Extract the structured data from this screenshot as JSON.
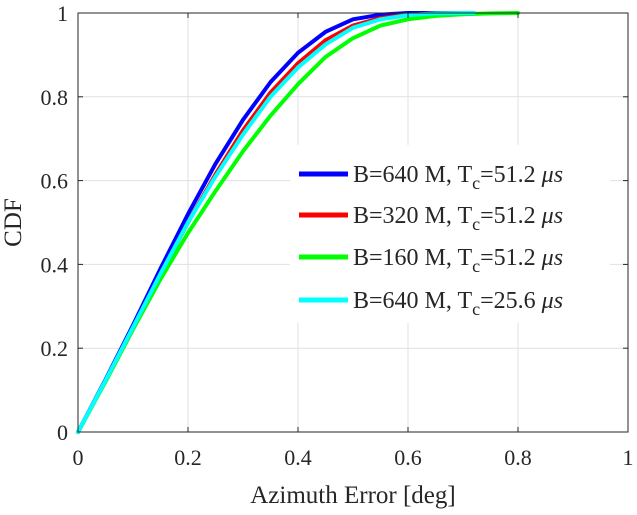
{
  "chart_data": {
    "type": "line",
    "title": "",
    "xlabel": "Azimuth Error [deg]",
    "ylabel": "CDF",
    "xlim": [
      0,
      1
    ],
    "ylim": [
      0,
      1
    ],
    "xticks": [
      0,
      0.2,
      0.4,
      0.6,
      0.8,
      1
    ],
    "yticks": [
      0,
      0.2,
      0.4,
      0.6,
      0.8,
      1
    ],
    "xtick_labels": [
      "0",
      "0.2",
      "0.4",
      "0.6",
      "0.8",
      "1"
    ],
    "ytick_labels": [
      "0",
      "0.2",
      "0.4",
      "0.6",
      "0.8",
      "1"
    ],
    "grid": true,
    "legend_position": "right",
    "series": [
      {
        "name": "B=640 M, T_c=51.2 μs",
        "legend": {
          "pre": "B=640 M, T",
          "sub": "c",
          "post": "=51.2 ",
          "unit": "μs"
        },
        "color": "#0000ff",
        "x": [
          0,
          0.05,
          0.1,
          0.15,
          0.2,
          0.25,
          0.3,
          0.35,
          0.4,
          0.45,
          0.5,
          0.55,
          0.6,
          0.65,
          0.7
        ],
        "y": [
          0,
          0.125,
          0.255,
          0.39,
          0.52,
          0.64,
          0.745,
          0.835,
          0.905,
          0.955,
          0.985,
          0.996,
          1.0,
          1.0,
          1.0
        ]
      },
      {
        "name": "B=320 M, T_c=51.2 μs",
        "legend": {
          "pre": "B=320 M, T",
          "sub": "c",
          "post": "=51.2 ",
          "unit": "μs"
        },
        "color": "#ff0000",
        "x": [
          0,
          0.05,
          0.1,
          0.15,
          0.2,
          0.25,
          0.3,
          0.35,
          0.4,
          0.45,
          0.5,
          0.55,
          0.6,
          0.65,
          0.7,
          0.72
        ],
        "y": [
          0,
          0.122,
          0.248,
          0.375,
          0.5,
          0.615,
          0.72,
          0.81,
          0.88,
          0.935,
          0.97,
          0.988,
          0.996,
          0.999,
          1.0,
          1.0
        ]
      },
      {
        "name": "B=160 M, T_c=51.2 μs",
        "legend": {
          "pre": "B=160 M, T",
          "sub": "c",
          "post": "=51.2 ",
          "unit": "μs"
        },
        "color": "#00ff00",
        "x": [
          0,
          0.05,
          0.1,
          0.15,
          0.2,
          0.25,
          0.3,
          0.35,
          0.4,
          0.45,
          0.5,
          0.55,
          0.6,
          0.65,
          0.7,
          0.75,
          0.8
        ],
        "y": [
          0,
          0.12,
          0.245,
          0.365,
          0.475,
          0.575,
          0.67,
          0.755,
          0.83,
          0.895,
          0.94,
          0.97,
          0.985,
          0.993,
          0.997,
          0.999,
          1.0
        ]
      },
      {
        "name": "B=640 M, T_c=25.6 μs",
        "legend": {
          "pre": "B=640 M, T",
          "sub": "c",
          "post": "=25.6 ",
          "unit": "μs"
        },
        "color": "#00ffff",
        "x": [
          0,
          0.05,
          0.1,
          0.15,
          0.2,
          0.25,
          0.3,
          0.35,
          0.4,
          0.45,
          0.5,
          0.55,
          0.6,
          0.65,
          0.7,
          0.72
        ],
        "y": [
          0,
          0.123,
          0.25,
          0.378,
          0.5,
          0.61,
          0.71,
          0.8,
          0.87,
          0.925,
          0.965,
          0.985,
          0.995,
          0.999,
          1.0,
          1.0
        ]
      }
    ]
  }
}
